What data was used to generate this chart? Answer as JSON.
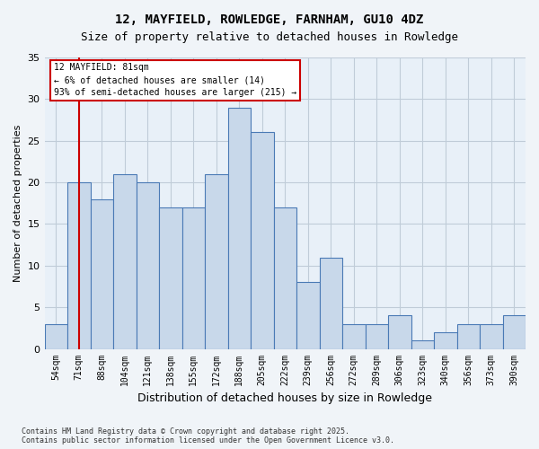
{
  "title1": "12, MAYFIELD, ROWLEDGE, FARNHAM, GU10 4DZ",
  "title2": "Size of property relative to detached houses in Rowledge",
  "xlabel": "Distribution of detached houses by size in Rowledge",
  "ylabel": "Number of detached properties",
  "categories": [
    "54sqm",
    "71sqm",
    "88sqm",
    "104sqm",
    "121sqm",
    "138sqm",
    "155sqm",
    "172sqm",
    "188sqm",
    "205sqm",
    "222sqm",
    "239sqm",
    "256sqm",
    "272sqm",
    "289sqm",
    "306sqm",
    "323sqm",
    "340sqm",
    "356sqm",
    "373sqm",
    "390sqm"
  ],
  "values": [
    3,
    20,
    18,
    21,
    20,
    17,
    17,
    21,
    29,
    26,
    17,
    8,
    11,
    3,
    3,
    4,
    1,
    2,
    3,
    3,
    4
  ],
  "bar_color": "#c8d8ea",
  "bar_edge_color": "#4a7ab5",
  "vline_x": 1,
  "vline_color": "#cc0000",
  "ylim": [
    0,
    35
  ],
  "yticks": [
    0,
    5,
    10,
    15,
    20,
    25,
    30,
    35
  ],
  "annotation_title": "12 MAYFIELD: 81sqm",
  "annotation_line1": "← 6% of detached houses are smaller (14)",
  "annotation_line2": "93% of semi-detached houses are larger (215) →",
  "footer1": "Contains HM Land Registry data © Crown copyright and database right 2025.",
  "footer2": "Contains public sector information licensed under the Open Government Licence v3.0.",
  "bg_color": "#f0f4f8",
  "plot_bg_color": "#e8f0f8",
  "grid_color": "#c0ccd8"
}
